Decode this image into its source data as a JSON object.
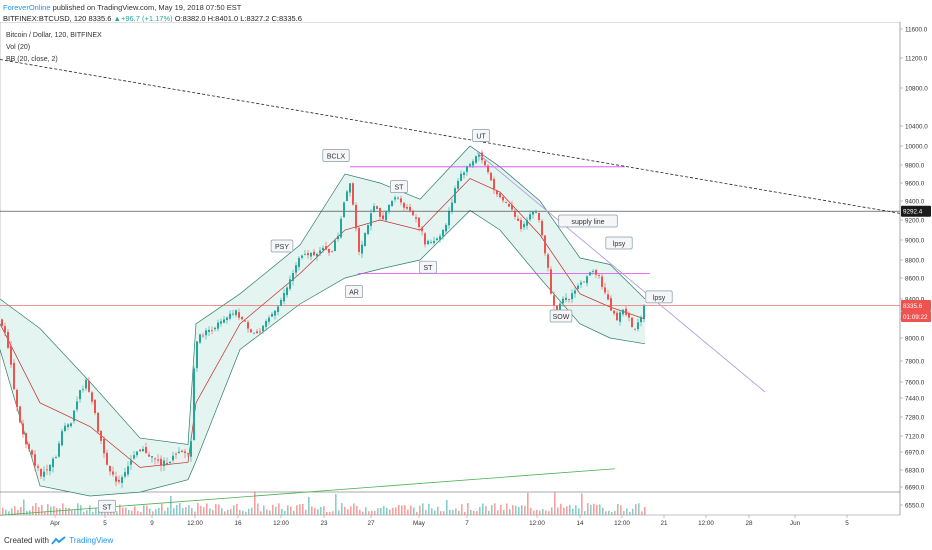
{
  "header": {
    "username": "ForeverOnline",
    "published_text": "published on TradingView.com, May 19, 2018 07:50 EST",
    "symbol": "BITFINEX:BTCUSD, 120",
    "last": "8335.6",
    "change": "+96.7 (+1.17%)",
    "ohlc": "O:8382.0 H:8401.0 L:8327.2 C:8335.6"
  },
  "legend": {
    "title": "Bitcoin / Dollar, 120, BITFINEX",
    "vol": "Vol (20)",
    "bb": "BB (20, close, 2)"
  },
  "footer": {
    "created_with": "Created with",
    "brand": "TradingView"
  },
  "colors": {
    "up": "#26a69a",
    "down": "#ef5350",
    "bb_fill": "#dff3ef",
    "bb_band": "#2e7d6a",
    "bb_basis": "#c62828",
    "range": "#e040fb",
    "supply": "#b39ddb",
    "volume_trend": "#4caf50"
  },
  "chart_data": {
    "type": "candlestick",
    "ylim": [
      6460,
      11700
    ],
    "y_ticks": [
      "11600.0",
      "11200.0",
      "10800.0",
      "10400.0",
      "10000.0",
      "9800.0",
      "9600.0",
      "9400.0",
      "9200.0",
      "9000.0",
      "8800.0",
      "8600.0",
      "8400.0",
      "8200.0",
      "8000.0",
      "7800.0",
      "7600.0",
      "7440.0",
      "7280.0",
      "7120.0",
      "6970.0",
      "6830.0",
      "6690.0",
      "6550.0"
    ],
    "x_ticks": [
      "Apr",
      "5",
      "9",
      "12:00",
      "16",
      "12:00",
      "23",
      "27",
      "May",
      "7",
      "12:00",
      "14",
      "12:00",
      "21",
      "12:00",
      "28",
      "Jun",
      "5"
    ],
    "price_badges": [
      {
        "label": "9292.4",
        "value": 9292.4
      },
      {
        "label": "8335.6",
        "value": 8335.6
      },
      {
        "label": "01:09:22",
        "value": 8225
      }
    ],
    "series_path": [
      [
        0,
        8180
      ],
      [
        8,
        7900
      ],
      [
        15,
        7400
      ],
      [
        24,
        7050
      ],
      [
        33,
        6900
      ],
      [
        40,
        6780
      ],
      [
        47,
        6870
      ],
      [
        55,
        6950
      ],
      [
        62,
        7180
      ],
      [
        70,
        7250
      ],
      [
        78,
        7480
      ],
      [
        85,
        7600
      ],
      [
        90,
        7470
      ],
      [
        96,
        7200
      ],
      [
        103,
        6980
      ],
      [
        110,
        6780
      ],
      [
        118,
        6740
      ],
      [
        126,
        6860
      ],
      [
        134,
        6940
      ],
      [
        143,
        6990
      ],
      [
        152,
        6920
      ],
      [
        161,
        6870
      ],
      [
        170,
        6920
      ],
      [
        180,
        6960
      ],
      [
        188,
        6960
      ],
      [
        191,
        7120
      ],
      [
        193,
        7750
      ],
      [
        196,
        7990
      ],
      [
        203,
        8050
      ],
      [
        210,
        8100
      ],
      [
        218,
        8150
      ],
      [
        226,
        8200
      ],
      [
        234,
        8280
      ],
      [
        242,
        8180
      ],
      [
        250,
        8080
      ],
      [
        258,
        8040
      ],
      [
        266,
        8170
      ],
      [
        274,
        8300
      ],
      [
        282,
        8420
      ],
      [
        290,
        8600
      ],
      [
        297,
        8800
      ],
      [
        305,
        8850
      ],
      [
        313,
        8870
      ],
      [
        322,
        8900
      ],
      [
        330,
        8880
      ],
      [
        337,
        9050
      ],
      [
        343,
        9400
      ],
      [
        349,
        9620
      ],
      [
        354,
        9200
      ],
      [
        358,
        8900
      ],
      [
        362,
        9000
      ],
      [
        368,
        9200
      ],
      [
        374,
        9350
      ],
      [
        380,
        9200
      ],
      [
        386,
        9300
      ],
      [
        392,
        9420
      ],
      [
        398,
        9450
      ],
      [
        404,
        9320
      ],
      [
        410,
        9300
      ],
      [
        416,
        9200
      ],
      [
        420,
        9100
      ],
      [
        424,
        8960
      ],
      [
        429,
        8980
      ],
      [
        436,
        9020
      ],
      [
        444,
        9120
      ],
      [
        450,
        9350
      ],
      [
        455,
        9600
      ],
      [
        460,
        9700
      ],
      [
        466,
        9770
      ],
      [
        472,
        9850
      ],
      [
        477,
        9930
      ],
      [
        481,
        9850
      ],
      [
        486,
        9750
      ],
      [
        491,
        9600
      ],
      [
        496,
        9450
      ],
      [
        502,
        9400
      ],
      [
        508,
        9350
      ],
      [
        514,
        9250
      ],
      [
        520,
        9130
      ],
      [
        526,
        9220
      ],
      [
        532,
        9300
      ],
      [
        537,
        9250
      ],
      [
        542,
        9000
      ],
      [
        547,
        8700
      ],
      [
        551,
        8400
      ],
      [
        556,
        8300
      ],
      [
        562,
        8380
      ],
      [
        568,
        8400
      ],
      [
        574,
        8500
      ],
      [
        580,
        8550
      ],
      [
        586,
        8600
      ],
      [
        592,
        8700
      ],
      [
        598,
        8620
      ],
      [
        604,
        8450
      ],
      [
        610,
        8300
      ],
      [
        616,
        8200
      ],
      [
        622,
        8300
      ],
      [
        628,
        8200
      ],
      [
        633,
        8050
      ],
      [
        638,
        8180
      ],
      [
        643,
        8335
      ]
    ],
    "bollinger_upper": [
      [
        0,
        8400
      ],
      [
        40,
        8100
      ],
      [
        90,
        7600
      ],
      [
        140,
        7100
      ],
      [
        188,
        7040
      ],
      [
        196,
        8150
      ],
      [
        240,
        8450
      ],
      [
        300,
        8950
      ],
      [
        345,
        9700
      ],
      [
        380,
        9600
      ],
      [
        420,
        9420
      ],
      [
        470,
        10000
      ],
      [
        500,
        9780
      ],
      [
        540,
        9400
      ],
      [
        580,
        8820
      ],
      [
        610,
        8750
      ],
      [
        645,
        8400
      ]
    ],
    "bollinger_lower": [
      [
        0,
        7900
      ],
      [
        40,
        6700
      ],
      [
        90,
        6620
      ],
      [
        140,
        6650
      ],
      [
        188,
        6750
      ],
      [
        196,
        6900
      ],
      [
        240,
        7900
      ],
      [
        300,
        8350
      ],
      [
        345,
        8600
      ],
      [
        380,
        8700
      ],
      [
        420,
        8800
      ],
      [
        470,
        9300
      ],
      [
        500,
        9100
      ],
      [
        540,
        8600
      ],
      [
        580,
        8150
      ],
      [
        610,
        8000
      ],
      [
        645,
        7950
      ]
    ],
    "bollinger_basis": [
      [
        0,
        8150
      ],
      [
        40,
        7400
      ],
      [
        90,
        7200
      ],
      [
        140,
        6850
      ],
      [
        188,
        6890
      ],
      [
        196,
        7400
      ],
      [
        240,
        8150
      ],
      [
        300,
        8650
      ],
      [
        345,
        9100
      ],
      [
        380,
        9200
      ],
      [
        420,
        9100
      ],
      [
        470,
        9650
      ],
      [
        500,
        9500
      ],
      [
        540,
        9050
      ],
      [
        580,
        8450
      ],
      [
        610,
        8320
      ],
      [
        645,
        8200
      ]
    ],
    "horizontal_lines": [
      {
        "value": 9292.4,
        "color": "#333333"
      },
      {
        "value": 8335.6,
        "color": "#ef5350"
      }
    ],
    "range_lines": [
      {
        "value": 9780,
        "x": [
          350,
          625
        ]
      },
      {
        "value": 8650,
        "x": [
          358,
          650
        ]
      }
    ],
    "resistance_trend": {
      "x": [
        0,
        900
      ],
      "y": [
        11180,
        9270
      ]
    },
    "supply_line": {
      "x": [
        477,
        765
      ],
      "y": [
        9930,
        7500
      ]
    },
    "volume_trend": {
      "x": [
        0,
        615
      ],
      "y": [
        6470,
        6840
      ]
    },
    "annotations": [
      {
        "label": "BCLX",
        "x": 336,
        "y": 9900
      },
      {
        "label": "UT",
        "x": 481,
        "y": 10210
      },
      {
        "label": "ST",
        "x": 399,
        "y": 9560
      },
      {
        "label": "ST",
        "x": 428,
        "y": 8720
      },
      {
        "label": "PSY",
        "x": 282,
        "y": 8940
      },
      {
        "label": "AR",
        "x": 354,
        "y": 8470
      },
      {
        "label": "supply line",
        "x": 588,
        "y": 9190
      },
      {
        "label": "lpsy",
        "x": 619,
        "y": 8970
      },
      {
        "label": "lpsy",
        "x": 659,
        "y": 8420
      },
      {
        "label": "SOW",
        "x": 561,
        "y": 8230
      },
      {
        "label": "ST",
        "x": 107,
        "y": 6540
      }
    ]
  }
}
